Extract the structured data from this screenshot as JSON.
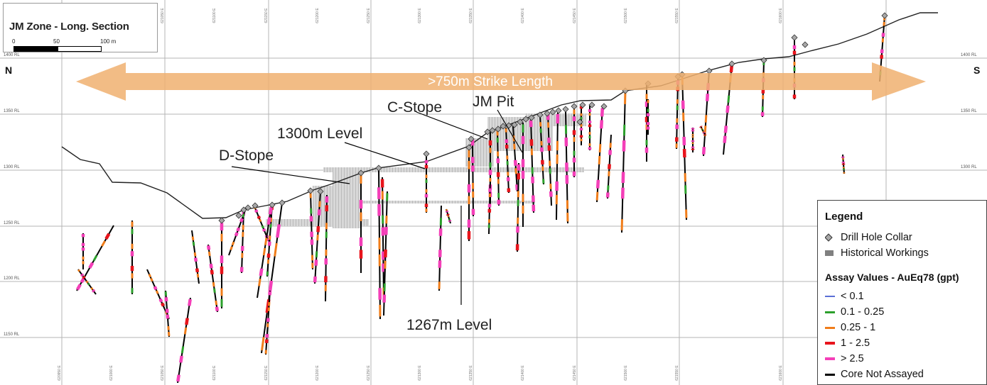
{
  "map": {
    "title": "JM Zone - Long. Section",
    "scale_labels": [
      "0",
      "50",
      "100 m"
    ],
    "north_label": "N",
    "south_label": "S",
    "strike_label": ">750m Strike Length",
    "elevation_labels": [
      "1400 RL",
      "1350 RL",
      "1300 RL",
      "1250 RL",
      "1200 RL",
      "1150 RL"
    ],
    "easting_labels": [
      "620950 E",
      "621000 E",
      "621050 E",
      "621100 E",
      "621150 E",
      "621200 E",
      "621250 E",
      "621300 E",
      "621350 E",
      "621400 E",
      "621450 E",
      "621500 E",
      "621550 E",
      "621600 E"
    ],
    "annotations": {
      "c_stope": "C-Stope",
      "jm_pit": "JM Pit",
      "level_1300": "1300m Level",
      "d_stope": "D-Stope",
      "level_1267": "1267m Level"
    },
    "colors": {
      "arrow": "#f0b070",
      "lt_0_1": "#5a6fd6",
      "0_1_to_0_25": "#2ca02c",
      "0_25_to_1": "#f07d1a",
      "1_to_2_5": "#e8141c",
      "gt_2_5": "#f43fb8",
      "core_not_assayed": "#000000",
      "collar": "#a8a8a8",
      "workings": "#808080"
    }
  },
  "legend": {
    "title": "Legend",
    "collar": "Drill Hole Collar",
    "workings": "Historical Workings",
    "assay_title": "Assay Values - AuEq78 (gpt)",
    "items": [
      {
        "label": "< 0.1",
        "color": "#5a6fd6",
        "icon": "thin-line"
      },
      {
        "label": "0.1 - 0.25",
        "color": "#2ca02c",
        "icon": "line"
      },
      {
        "label": "0.25 - 1",
        "color": "#f07d1a",
        "icon": "line"
      },
      {
        "label": "1 - 2.5",
        "color": "#e8141c",
        "icon": "thick-line"
      },
      {
        "label": "> 2.5",
        "color": "#f43fb8",
        "icon": "thick-line"
      },
      {
        "label": "Core Not Assayed",
        "color": "#000000",
        "icon": "line"
      }
    ]
  }
}
